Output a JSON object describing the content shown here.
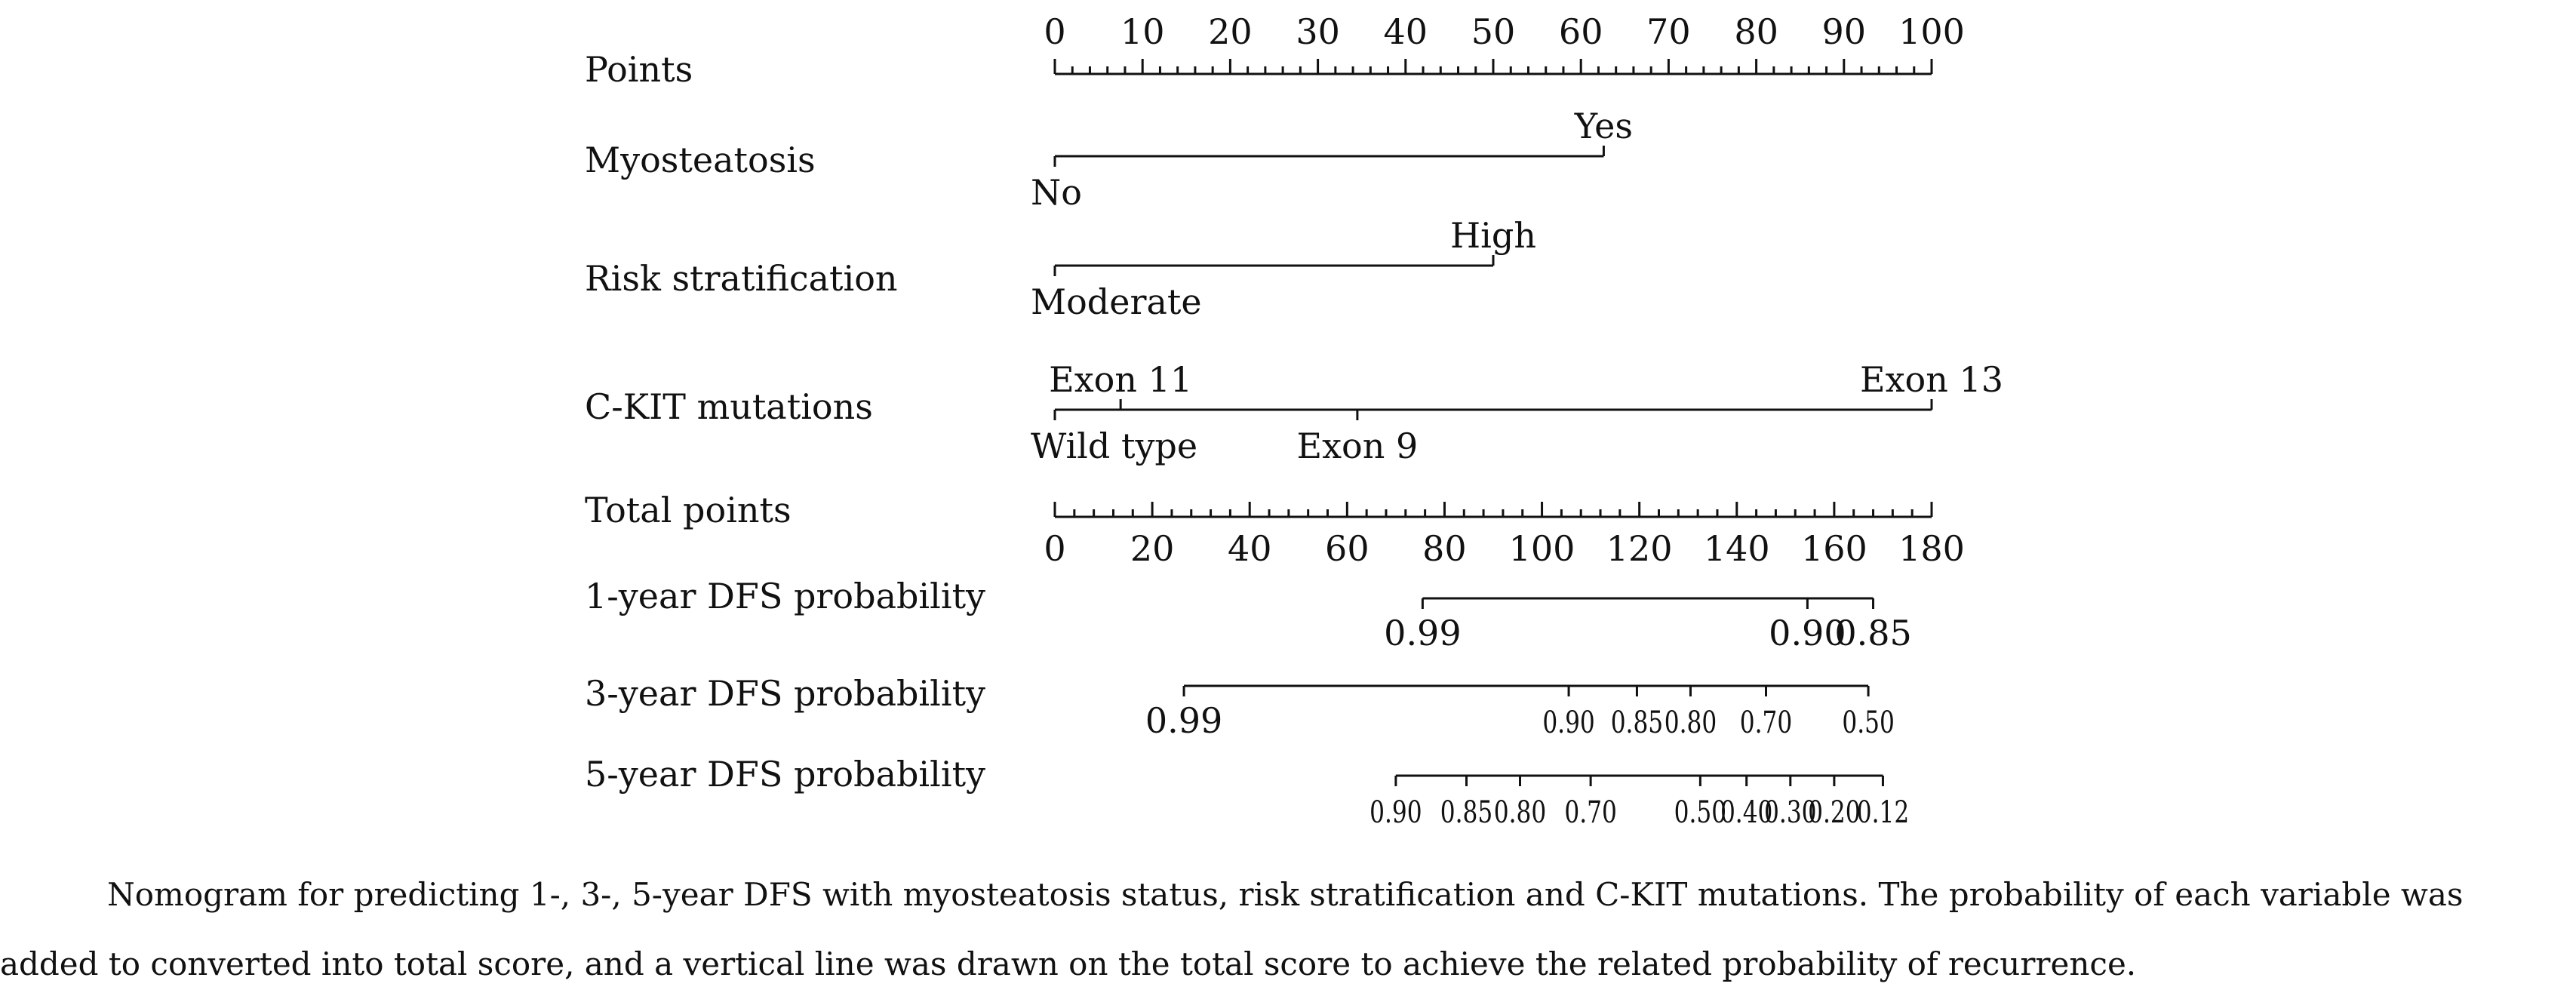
{
  "chart_data": {
    "type": "nomogram",
    "rows": [
      {
        "id": "points",
        "label": "Points",
        "kind": "scale",
        "ticks": [
          0,
          10,
          20,
          30,
          40,
          50,
          60,
          70,
          80,
          90,
          100
        ],
        "minor_step": 2,
        "label_side": "above"
      },
      {
        "id": "myosteatosis",
        "label": "Myosteatosis",
        "kind": "factor",
        "levels": [
          {
            "name": "No",
            "points": 0,
            "side": "below"
          },
          {
            "name": "Yes",
            "points": 62.6,
            "side": "above"
          }
        ]
      },
      {
        "id": "risk",
        "label": "Risk stratification",
        "kind": "factor",
        "levels": [
          {
            "name": "Moderate",
            "points": 0,
            "side": "below"
          },
          {
            "name": "High",
            "points": 50,
            "side": "above"
          }
        ]
      },
      {
        "id": "ckit",
        "label": "C-KIT mutations",
        "kind": "factor",
        "levels": [
          {
            "name": "Wild type",
            "points": 0,
            "side": "below"
          },
          {
            "name": "Exon 11",
            "points": 7.5,
            "side": "above"
          },
          {
            "name": "Exon 9",
            "points": 34.5,
            "side": "below"
          },
          {
            "name": "Exon 13",
            "points": 100,
            "side": "above"
          }
        ]
      },
      {
        "id": "total",
        "label": "Total points",
        "kind": "total",
        "ticks": [
          0,
          20,
          40,
          60,
          80,
          100,
          120,
          140,
          160,
          180
        ],
        "minor_step": 4,
        "max": 180,
        "label_side": "below"
      },
      {
        "id": "dfs1",
        "label": "1-year DFS probability",
        "kind": "prob",
        "ticks": [
          {
            "label": "0.99",
            "total": 75.5
          },
          {
            "label": "0.90",
            "total": 154.5
          },
          {
            "label": "0.85",
            "total": 168
          }
        ]
      },
      {
        "id": "dfs3",
        "label": "3-year DFS probability",
        "kind": "prob",
        "ticks": [
          {
            "label": "0.99",
            "total": 26.5
          },
          {
            "label": "0.90",
            "total": 105.5
          },
          {
            "label": "0.85",
            "total": 119.5
          },
          {
            "label": "0.80",
            "total": 130.5
          },
          {
            "label": "0.70",
            "total": 146
          },
          {
            "label": "0.50",
            "total": 167
          }
        ]
      },
      {
        "id": "dfs5",
        "label": "5-year DFS probability",
        "kind": "prob",
        "ticks": [
          {
            "label": "0.90",
            "total": 70
          },
          {
            "label": "0.85",
            "total": 84.5
          },
          {
            "label": "0.80",
            "total": 95.5
          },
          {
            "label": "0.70",
            "total": 110
          },
          {
            "label": "0.50",
            "total": 132.5
          },
          {
            "label": "0.40",
            "total": 142
          },
          {
            "label": "0.30",
            "total": 151
          },
          {
            "label": "0.20",
            "total": 160
          },
          {
            "label": "0.12",
            "total": 170
          }
        ]
      }
    ]
  },
  "caption": {
    "line1": "Nomogram for predicting 1-, 3-, 5-year DFS with myosteatosis status, risk stratification and C-KIT mutations. The probability of each variable was",
    "line2": "added to converted into total score, and a vertical line was drawn on the total score to achieve the related probability of recurrence."
  }
}
